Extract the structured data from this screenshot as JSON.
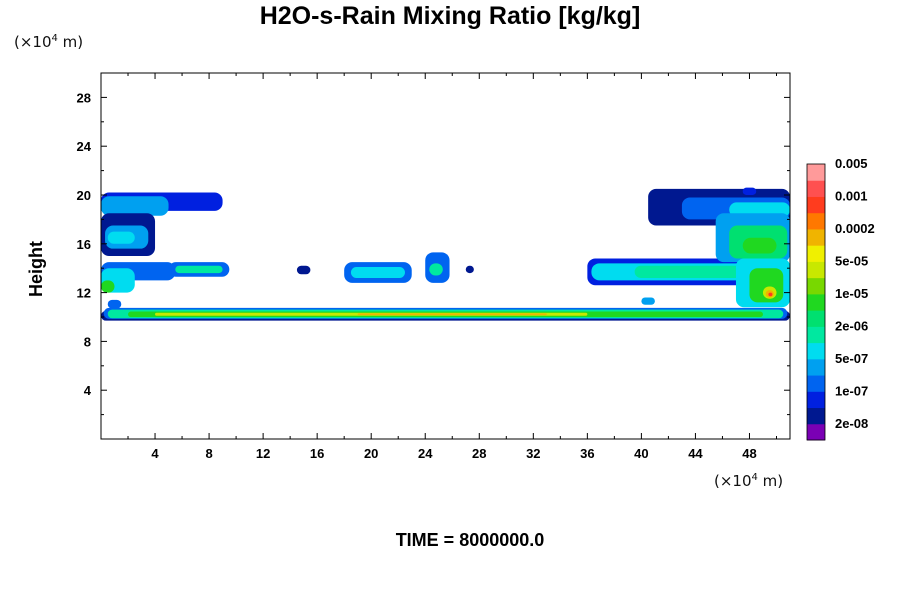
{
  "chart_data": {
    "type": "heatmap",
    "title": "H2O-s-Rain Mixing Ratio [kg/kg]",
    "ylabel": "Height",
    "y_units_prefix": "(×10",
    "y_units_exp": "4",
    "y_units_suffix": " m)",
    "x_units_prefix": "(×10",
    "x_units_exp": "4",
    "x_units_suffix": " m)",
    "time_label": "TIME = 8000000.0",
    "xlim": [
      0,
      51
    ],
    "ylim": [
      0,
      30
    ],
    "x_ticks": [
      "4",
      "8",
      "12",
      "16",
      "20",
      "24",
      "28",
      "32",
      "36",
      "40",
      "44",
      "48"
    ],
    "x_tick_values": [
      4,
      8,
      12,
      16,
      20,
      24,
      28,
      32,
      36,
      40,
      44,
      48
    ],
    "y_ticks": [
      "4",
      "8",
      "12",
      "16",
      "20",
      "24",
      "28"
    ],
    "y_tick_values": [
      4,
      8,
      12,
      16,
      20,
      24,
      28
    ],
    "colorbar": {
      "colors": [
        "#7a00b4",
        "#001890",
        "#0020e0",
        "#0064f0",
        "#00a0f0",
        "#00dcf0",
        "#00e8a0",
        "#00e070",
        "#20d820",
        "#78d800",
        "#c8e800",
        "#f0f000",
        "#f0b400",
        "#ff7800",
        "#ff3c1e",
        "#ff5050",
        "#ff9a9a"
      ],
      "labels": [
        "2e-08",
        "1e-07",
        "5e-07",
        "2e-06",
        "1e-05",
        "5e-05",
        "0.0002",
        "0.001",
        "0.005"
      ]
    },
    "regions": [
      {
        "level": 1,
        "x": [
          0,
          51
        ],
        "y": [
          9.7,
          10.5
        ]
      },
      {
        "level": 3,
        "x": [
          0.2,
          50.8
        ],
        "y": [
          9.85,
          10.75
        ]
      },
      {
        "level": 6,
        "x": [
          0.5,
          50.5
        ],
        "y": [
          9.9,
          10.6
        ]
      },
      {
        "level": 8,
        "x": [
          2,
          49
        ],
        "y": [
          10.0,
          10.45
        ]
      },
      {
        "level": 10,
        "x": [
          4,
          36
        ],
        "y": [
          10.1,
          10.35
        ]
      },
      {
        "level": 12,
        "x": [
          19,
          33
        ],
        "y": [
          10.15,
          10.3
        ]
      },
      {
        "level": 2,
        "x": [
          0,
          9
        ],
        "y": [
          18.7,
          20.2
        ]
      },
      {
        "level": 4,
        "x": [
          0,
          5
        ],
        "y": [
          18.3,
          19.9
        ]
      },
      {
        "level": 1,
        "x": [
          0,
          4
        ],
        "y": [
          15.0,
          18.5
        ]
      },
      {
        "level": 4,
        "x": [
          0.3,
          3.5
        ],
        "y": [
          15.6,
          17.5
        ]
      },
      {
        "level": 5,
        "x": [
          0.5,
          2.5
        ],
        "y": [
          16.0,
          17.0
        ]
      },
      {
        "level": 3,
        "x": [
          0,
          5.5
        ],
        "y": [
          13.0,
          14.5
        ]
      },
      {
        "level": 5,
        "x": [
          0,
          2.5
        ],
        "y": [
          12.0,
          14.0
        ]
      },
      {
        "level": 8,
        "x": [
          0,
          1.0
        ],
        "y": [
          12.0,
          13.0
        ]
      },
      {
        "level": 3,
        "x": [
          5,
          9.5
        ],
        "y": [
          13.3,
          14.5
        ]
      },
      {
        "level": 6,
        "x": [
          5.5,
          9
        ],
        "y": [
          13.6,
          14.2
        ]
      },
      {
        "level": 3,
        "x": [
          0.5,
          1.5
        ],
        "y": [
          10.7,
          11.4
        ]
      },
      {
        "level": 1,
        "x": [
          14.5,
          15.5
        ],
        "y": [
          13.5,
          14.2
        ]
      },
      {
        "level": 3,
        "x": [
          18.0,
          23.0
        ],
        "y": [
          12.8,
          14.5
        ]
      },
      {
        "level": 5,
        "x": [
          18.5,
          22.5
        ],
        "y": [
          13.2,
          14.1
        ]
      },
      {
        "level": 3,
        "x": [
          24.0,
          25.8
        ],
        "y": [
          12.8,
          15.3
        ]
      },
      {
        "level": 6,
        "x": [
          24.3,
          25.3
        ],
        "y": [
          13.4,
          14.4
        ]
      },
      {
        "level": 1,
        "x": [
          27.0,
          27.6
        ],
        "y": [
          13.6,
          14.2
        ]
      },
      {
        "level": 2,
        "x": [
          36.0,
          50.8
        ],
        "y": [
          12.6,
          14.8
        ]
      },
      {
        "level": 5,
        "x": [
          36.3,
          49.0
        ],
        "y": [
          13.0,
          14.4
        ]
      },
      {
        "level": 6,
        "x": [
          39.5,
          48.0
        ],
        "y": [
          13.2,
          14.2
        ]
      },
      {
        "level": 1,
        "x": [
          40.5,
          51
        ],
        "y": [
          17.5,
          20.5
        ]
      },
      {
        "level": 3,
        "x": [
          43.0,
          51
        ],
        "y": [
          18.0,
          19.8
        ]
      },
      {
        "level": 5,
        "x": [
          46.5,
          51
        ],
        "y": [
          18.2,
          19.4
        ]
      },
      {
        "level": 4,
        "x": [
          45.5,
          51
        ],
        "y": [
          14.5,
          18.5
        ]
      },
      {
        "level": 7,
        "x": [
          46.5,
          50.8
        ],
        "y": [
          14.8,
          17.5
        ]
      },
      {
        "level": 8,
        "x": [
          47.5,
          50.0
        ],
        "y": [
          15.2,
          16.5
        ]
      },
      {
        "level": 5,
        "x": [
          47.0,
          51
        ],
        "y": [
          10.8,
          14.8
        ]
      },
      {
        "level": 8,
        "x": [
          48.0,
          50.5
        ],
        "y": [
          11.2,
          14.0
        ]
      },
      {
        "level": 10,
        "x": [
          49.0,
          50.0
        ],
        "y": [
          11.5,
          12.5
        ]
      },
      {
        "level": 12,
        "x": [
          49.2,
          49.8
        ],
        "y": [
          11.6,
          12.2
        ]
      },
      {
        "level": 14,
        "x": [
          49.4,
          49.7
        ],
        "y": [
          11.7,
          12.0
        ]
      },
      {
        "level": 4,
        "x": [
          40.0,
          41.0
        ],
        "y": [
          11.0,
          11.6
        ]
      },
      {
        "level": 2,
        "x": [
          47.5,
          48.5
        ],
        "y": [
          20.0,
          20.6
        ]
      }
    ]
  }
}
